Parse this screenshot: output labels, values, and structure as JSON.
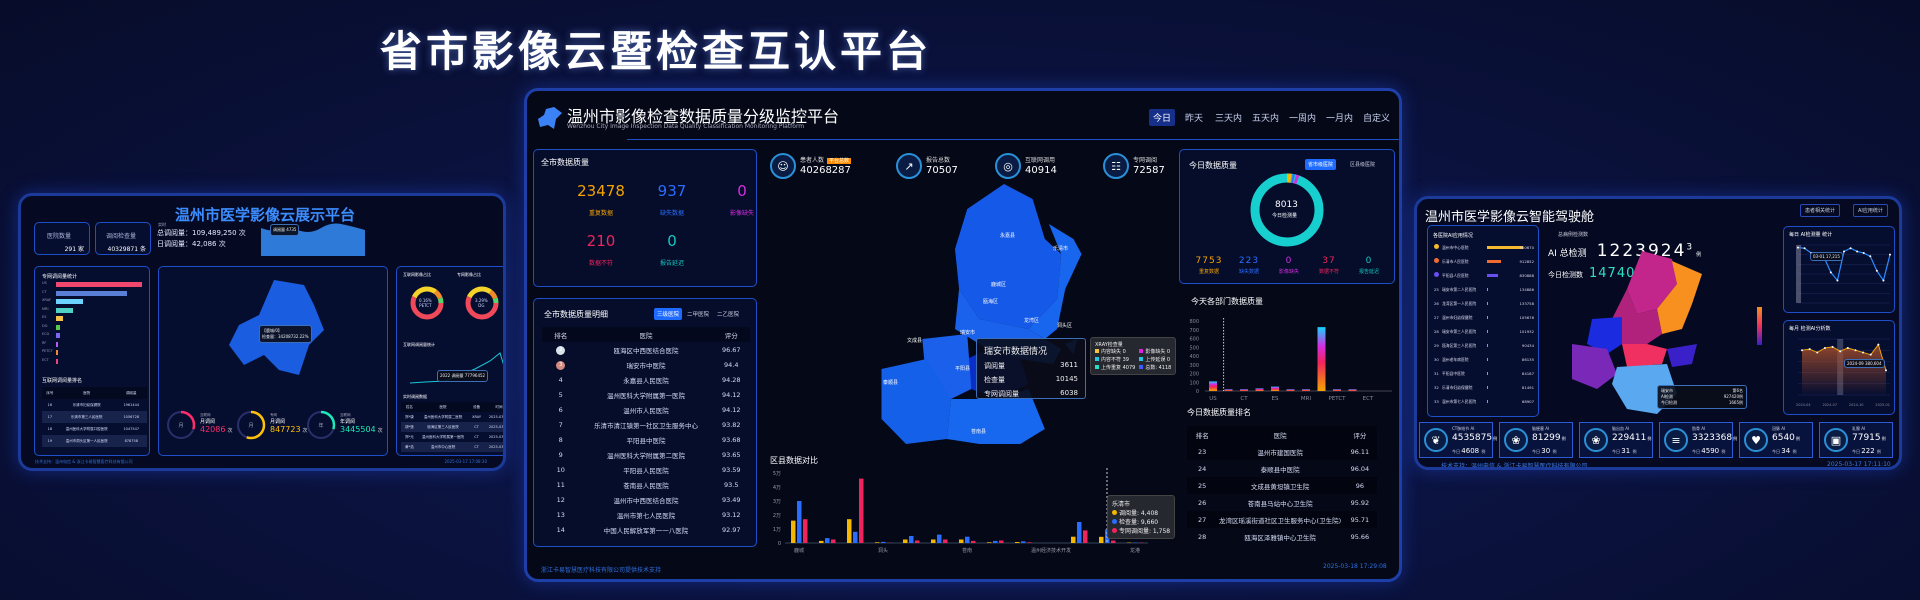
{
  "page_title": "省市影像云暨检查互认平台",
  "left": {
    "title": "温州市医学影像云展示平台",
    "hospital_count_label": "医院数量",
    "hospital_count": "291",
    "hospital_unit": "家",
    "exam_count_label": "调阅检查量",
    "exam_count": "40329871",
    "exam_unit": "条",
    "realtime_label": "实时",
    "total_views": "总调阅量：109,489,250 次",
    "daily_views": "日调阅量：42,086 次",
    "area_tooltip": "调阅量  4735",
    "bar_title": "专网调阅量统计",
    "bar_items": [
      {
        "label": "US",
        "value": 100
      },
      {
        "label": "CT",
        "value": 82
      },
      {
        "label": "XRAY",
        "value": 31
      },
      {
        "label": "MRI",
        "value": 20
      },
      {
        "label": "ES",
        "value": 8
      },
      {
        "label": "DG",
        "value": 5
      },
      {
        "label": "ECG",
        "value": 5
      },
      {
        "label": "RF",
        "value": 2
      },
      {
        "label": "PETCT",
        "value": 2
      },
      {
        "label": "ECT",
        "value": 2
      }
    ],
    "bar_colors": [
      "#f0476e",
      "#5a7fd6",
      "#6cd3ff",
      "#4fd1c5",
      "#f6c24a",
      "#58c94f",
      "#7b68ee",
      "#b45cf0",
      "#ef8a2e",
      "#e8457a"
    ],
    "rank_title": "互联网调阅量排名",
    "rank_headers": [
      "序号",
      "医院",
      "调阅量"
    ],
    "rank_rows": [
      [
        "16",
        "乐清市妇幼保健院",
        "1961444"
      ],
      [
        "17",
        "乐清市第三人民医院",
        "1056728"
      ],
      [
        "18",
        "温州医科大学附属口腔医院",
        "1047547"
      ],
      [
        "19",
        "温州市洞头区第一人民医院",
        "878758"
      ]
    ],
    "map_tooltip_title": "【鹿城/0】",
    "map_tooltip_value": "检查量：34208732.22%",
    "gauges": [
      {
        "icon": "月",
        "small": "互联网",
        "label": "月调阅",
        "value": "42086",
        "unit": "次",
        "color": "#ff2d6b",
        "fill": 0.3
      },
      {
        "icon": "月",
        "small": "专网",
        "label": "月调阅",
        "value": "847723",
        "unit": "次",
        "color": "#ffc107",
        "fill": 0.55
      },
      {
        "icon": "年",
        "small": "互联网",
        "label": "年调阅",
        "value": "3445504",
        "unit": "次",
        "color": "#1de9b6",
        "fill": 0.3
      }
    ],
    "donut1_title": "互联网影像占比",
    "donut1_center": "0.16%",
    "donut1_sub": "PETCT",
    "donut2_title": "专网影像占比",
    "donut2_center": "3.29%",
    "donut2_sub": "DG",
    "line_title": "互联网调阅量统计",
    "line_tooltip": "2022  调阅量 77796452",
    "rt_title": "实时调阅数据",
    "rt_headers": [
      "姓名",
      "医院",
      "设备",
      "时间"
    ],
    "rt_rows": [
      [
        "郑*康",
        "温州医科大学附属二医院",
        "XRAY",
        "2025-03-17"
      ],
      [
        "胡*莲",
        "瓯海区第三人民医院",
        "CT",
        "2025-03-17"
      ],
      [
        "郑*元",
        "温州医科大学附属第一医院",
        "CT",
        "2025-03-17"
      ],
      [
        "黄*浩",
        "温州市中心医院",
        "CT",
        "2025-03-17"
      ]
    ],
    "footer": "技术支持：温州电信 & 浙江卡易智慧医疗科技有限公司",
    "timestamp": "2025-03-17 17:08:30"
  },
  "center": {
    "title": "温州市影像检查数据质量分级监控平台",
    "subtitle": "Wenzhou City Image Inspection Data Quality Classification Monitoring Platform",
    "time_tabs": [
      "今日",
      "昨天",
      "三天内",
      "五天内",
      "一周内",
      "一月内",
      "自定义"
    ],
    "active_tab": 0,
    "quality": {
      "title": "全市数据质量",
      "items": [
        {
          "value": "23478",
          "label": "重复数据",
          "color": "#f5a300"
        },
        {
          "value": "937",
          "label": "缺失数据",
          "color": "#2b6dff"
        },
        {
          "value": "0",
          "label": "影像缺失",
          "color": "#d42ee0"
        },
        {
          "value": "210",
          "label": "数据不符",
          "color": "#f0245d"
        },
        {
          "value": "0",
          "label": "报告延迟",
          "color": "#15c7c0"
        }
      ]
    },
    "stats": [
      {
        "icon": "patients-icon",
        "label": "患者人数",
        "badge": "平台总数",
        "value": "40268287"
      },
      {
        "icon": "report-icon",
        "label": "报告总数",
        "value": "70507"
      },
      {
        "icon": "globe-icon",
        "label": "互联网调用",
        "value": "40914"
      },
      {
        "icon": "network-icon",
        "label": "专网调阅",
        "value": "72587"
      }
    ],
    "ranking": {
      "title": "全市数据质量明细",
      "tabs": [
        "三级医院",
        "二甲医院",
        "二乙医院"
      ],
      "active_tab": 0,
      "headers": [
        "排名",
        "医院",
        "评分"
      ],
      "rows": [
        [
          "2",
          "瓯海区中西医结合医院",
          "96.67"
        ],
        [
          "3",
          "瑞安市中医院",
          "94.4"
        ],
        [
          "4",
          "永嘉县人民医院",
          "94.28"
        ],
        [
          "5",
          "温州医科大学附属第一医院",
          "94.12"
        ],
        [
          "6",
          "温州市人民医院",
          "94.12"
        ],
        [
          "7",
          "乐清市清江镇第一社区卫生服务中心",
          "93.82"
        ],
        [
          "8",
          "平阳县中医院",
          "93.68"
        ],
        [
          "9",
          "温州医科大学附属第二医院",
          "93.65"
        ],
        [
          "10",
          "平阳县人民医院",
          "93.59"
        ],
        [
          "11",
          "苍南县人民医院",
          "93.5"
        ],
        [
          "12",
          "温州市中西医结合医院",
          "93.49"
        ],
        [
          "13",
          "温州市第七人民医院",
          "93.12"
        ],
        [
          "14",
          "中国人民解放军第一一八医院",
          "92.97"
        ]
      ]
    },
    "map_regions": [
      "永嘉县",
      "乐清市",
      "鹿城区",
      "瓯海区",
      "龙湾区",
      "洞头区",
      "瑞安市",
      "文成县",
      "泰顺县",
      "平阳县",
      "苍南县"
    ],
    "map_highlight": "瑞安市",
    "map_tooltip": {
      "title": "瑞安市数据情况",
      "rows": [
        [
          "调阅量",
          "3611"
        ],
        [
          "检查量",
          "10145"
        ],
        [
          "专网调阅量",
          "6038"
        ]
      ]
    },
    "xray_tooltip": {
      "title": "XRAY检查量",
      "items": [
        [
          "内容缺失",
          "0",
          "#f5c542"
        ],
        [
          "影像缺失",
          "0",
          "#e020e0"
        ],
        [
          "内容不符",
          "39",
          "#25c7e0"
        ],
        [
          "上传延误",
          "0",
          "#25c7e0"
        ],
        [
          "上传重复",
          "4079",
          "#25e0c7"
        ],
        [
          "总数:",
          "4118",
          "#3b5bff"
        ]
      ]
    },
    "district_chart": {
      "title": "区县数据对比",
      "type": "bar",
      "yticks": [
        "0",
        "1万",
        "2万",
        "3万",
        "4万",
        "5万"
      ],
      "ylim": [
        0,
        50000
      ],
      "labels": [
        "鹿城",
        "",
        "",
        "洞头",
        "",
        "",
        "苍南",
        "",
        "",
        "温州经济技术开发",
        "",
        "",
        "龙港"
      ],
      "series": [
        {
          "name": "调阅量",
          "color": "#f5b800",
          "values": [
            16000,
            1500,
            17000,
            500,
            2500,
            2500,
            2500,
            500,
            700,
            0,
            4500,
            4408,
            300
          ]
        },
        {
          "name": "检查量",
          "color": "#2b6dff",
          "values": [
            30000,
            3500,
            8000,
            800,
            5000,
            6000,
            4500,
            1500,
            1200,
            0,
            15000,
            9660,
            300
          ]
        },
        {
          "name": "专网调阅量",
          "color": "#f0245d",
          "values": [
            17000,
            2500,
            46000,
            200,
            1800,
            2500,
            1500,
            1800,
            500,
            0,
            9000,
            1758,
            300
          ]
        }
      ],
      "tooltip": {
        "title": "乐清市",
        "rows": [
          "调阅量: 4,408",
          "检查量: 9,660",
          "专网调阅量: 1,758"
        ]
      }
    },
    "today_quality": {
      "title": "今日数据质量",
      "tabs": [
        "省市级医院",
        "区县级医院"
      ],
      "active_tab": 0,
      "total": "8013",
      "total_label": "今日检测量",
      "items": [
        {
          "value": "7753",
          "label": "重复数据",
          "color": "#f5a300"
        },
        {
          "value": "223",
          "label": "缺失数据",
          "color": "#2b6dff"
        },
        {
          "value": "0",
          "label": "影像缺失",
          "color": "#d42ee0"
        },
        {
          "value": "37",
          "label": "数据不符",
          "color": "#f0245d"
        },
        {
          "value": "0",
          "label": "报告延迟",
          "color": "#15c7c0"
        }
      ]
    },
    "dept_chart": {
      "title": "今天各部门数据质量",
      "type": "bar",
      "ylim": [
        0,
        800
      ],
      "yticks": [
        "0",
        "100",
        "200",
        "300",
        "400",
        "500",
        "600",
        "700",
        "800"
      ],
      "labels": [
        "US",
        "",
        "CT",
        "",
        "ES",
        "",
        "MRI",
        "",
        "PETCT",
        "",
        "ECT"
      ],
      "values": [
        110,
        20,
        20,
        30,
        50,
        20,
        20,
        730,
        20,
        20,
        0
      ]
    },
    "today_rank": {
      "title": "今日数据质量排名",
      "headers": [
        "排名",
        "医院",
        "评分"
      ],
      "rows": [
        [
          "23",
          "温州市建国医院",
          "96.11"
        ],
        [
          "24",
          "泰顺县中医院",
          "96.04"
        ],
        [
          "25",
          "文成县黄坦镇卫生院",
          "96"
        ],
        [
          "26",
          "苍南县马站中心卫生院",
          "95.92"
        ],
        [
          "27",
          "龙湾区瑶溪街道社区卫生服务中心(卫生院)",
          "95.71"
        ],
        [
          "28",
          "瓯海区泽雅镇中心卫生院",
          "95.66"
        ]
      ]
    },
    "footer": "浙江卡易智慧医疗科技有限公司提供技术支持",
    "timestamp": "2025-03-18 17:29:08"
  },
  "right": {
    "title": "温州市医学影像云智能驾驶舱",
    "buttons": [
      "患者相关统计",
      "AI应用统计"
    ],
    "ai_list_title": "各医院AI应用情况",
    "ai_list": [
      [
        "",
        "温州市中心医院",
        "960670",
        100,
        "#f5b82e"
      ],
      [
        "",
        "乐清市人民医院",
        "912852",
        40,
        "#ef6b2e"
      ],
      [
        "",
        "平阳县人民医院",
        "830888",
        30,
        "#6a4ff0"
      ],
      [
        "25",
        "瑞安市第二人民医院",
        "134886",
        2,
        "#2bc7e0"
      ],
      [
        "26",
        "龙湾区第一人民医院",
        "133758",
        2,
        "#2bc7e0"
      ],
      [
        "27",
        "温州市妇幼保健院",
        "105676",
        2,
        "#2bc7e0"
      ],
      [
        "28",
        "瑞安市第三人民医院",
        "101932",
        2,
        "#2bc7e0"
      ],
      [
        "29",
        "瓯海区第三人民医院",
        "90434",
        2,
        "#2bc7e0"
      ],
      [
        "30",
        "温州老年病医院",
        "86135",
        2,
        "#2bc7e0"
      ],
      [
        "31",
        "平阳县中医院",
        "84187",
        2,
        "#2bc7e0"
      ],
      [
        "32",
        "乐清市妇幼保健院",
        "81491",
        2,
        "#2bc7e0"
      ],
      [
        "33",
        "温州市第七人民医院",
        "68907",
        2,
        "#2bc7e0"
      ]
    ],
    "total_label": "总病例检测数",
    "ai_total_label": "AI 总检测",
    "ai_total": "1223924",
    "ai_total_sup": "3",
    "unit": "例",
    "today_label": "今日检测数",
    "today_value": "14740",
    "map_tooltip": {
      "title": "瑞安市",
      "rank": "第6名",
      "rows": [
        [
          "AI检测",
          "927420例"
        ],
        [
          "今日检测",
          "1665例"
        ]
      ]
    },
    "daily_chart": {
      "title": "每日 AI检测量 统计",
      "type": "line",
      "values": [
        17200,
        17000,
        15500,
        15000,
        14000,
        9500,
        7000,
        16000,
        17000,
        16000,
        15500,
        14500,
        10000,
        7000,
        15000
      ],
      "ylim": [
        0,
        18000
      ],
      "tooltip": "03-01  17,215"
    },
    "monthly_chart": {
      "title": "每月 检测AI分析数",
      "type": "area",
      "values": [
        400000,
        410000,
        380000,
        420000,
        430000,
        390000,
        420000,
        400000,
        380000,
        360000,
        450000,
        220000
      ],
      "ylim": [
        0,
        500000
      ],
      "xticks": [
        "2024-04",
        "2024-07",
        "2024-10",
        "2025-01"
      ],
      "tooltip": "2024-09  380,604"
    },
    "ai_cards": [
      {
        "icon": "lungs-icon",
        "label": "CT肺结节 AI",
        "total": "4535875",
        "today": "4608"
      },
      {
        "icon": "brain-icon",
        "label": "脑梗塞 AI",
        "total": "81299",
        "today": "30"
      },
      {
        "icon": "brain-icon",
        "label": "脑出血 AI",
        "total": "229411",
        "today": "31"
      },
      {
        "icon": "ribs-icon",
        "label": "肋骨 AI",
        "total": "3323368",
        "today": "4590"
      },
      {
        "icon": "heart-icon",
        "label": "冠脉 AI",
        "total": "6540",
        "today": "34"
      },
      {
        "icon": "breast-scan-icon",
        "label": "乳腺 AI",
        "total": "77915",
        "today": "222"
      }
    ],
    "today_prefix": "今日",
    "count_unit": "例",
    "footer": "技术支持：温州电信 & 浙江卡易智慧医疗科技有限公司",
    "timestamp": "2025-03-17 17:11:10"
  }
}
